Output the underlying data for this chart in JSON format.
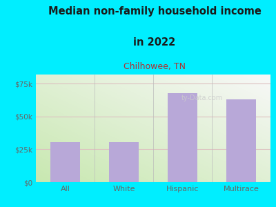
{
  "categories": [
    "All",
    "White",
    "Hispanic",
    "Multirace"
  ],
  "values": [
    30500,
    30500,
    68000,
    63000
  ],
  "bar_color": "#b8a8d8",
  "title_line1": "Median non-family household income",
  "title_line2": "in 2022",
  "subtitle": "Chilhowee, TN",
  "title_color": "#1a1a1a",
  "subtitle_color": "#b03030",
  "background_color": "#00eeff",
  "plot_bg_top_left": "#c8e8b0",
  "plot_bg_bottom_right": "#f8f8f8",
  "yticks": [
    0,
    25000,
    50000,
    75000
  ],
  "ytick_labels": [
    "$0",
    "$25k",
    "$50k",
    "$75k"
  ],
  "ylim": [
    0,
    82000
  ],
  "grid_color": "#ddc0c0",
  "watermark": "ty-Data.com",
  "tick_label_color": "#666666"
}
